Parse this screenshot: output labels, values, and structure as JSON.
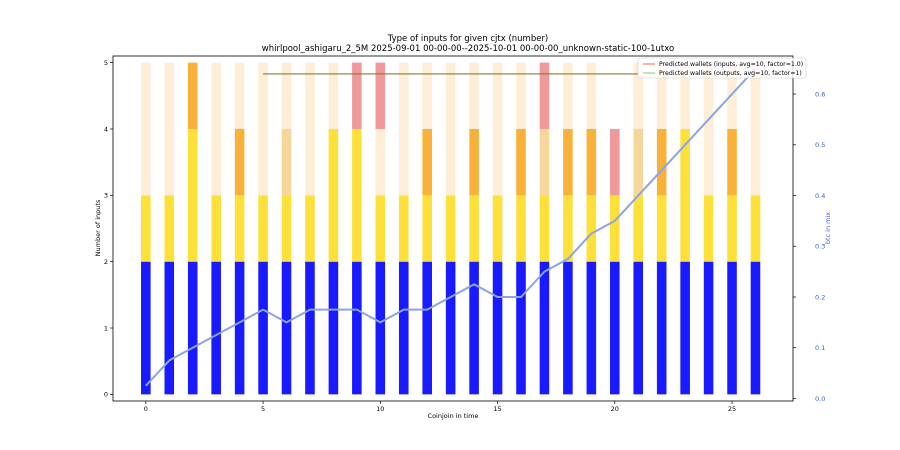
{
  "chart_data": {
    "type": "bar",
    "title": "Type of inputs for given cjtx (number)",
    "subtitle": "whirlpool_ashigaru_2_5M 2025-09-01 00-00-00--2025-10-01 00-00-00_unknown-static-100-1utxo",
    "xlabel": "Coinjoin in time",
    "ylabel": "Number of inputs",
    "ylabel_right": "btc in mix",
    "xlim": [
      -1.4,
      27.6
    ],
    "ylim": [
      -0.1,
      5.1
    ],
    "ylim_right": [
      -0.005,
      0.675
    ],
    "x_ticks": [
      0,
      5,
      10,
      15,
      20,
      25
    ],
    "y_ticks": [
      0,
      1,
      2,
      3,
      4,
      5
    ],
    "y_ticks_right": [
      0.0,
      0.1,
      0.2,
      0.3,
      0.4,
      0.5,
      0.6
    ],
    "x": [
      0,
      1,
      2,
      3,
      4,
      5,
      6,
      7,
      8,
      9,
      10,
      11,
      12,
      13,
      14,
      15,
      16,
      17,
      18,
      19,
      20,
      21,
      22,
      23,
      24,
      25,
      26
    ],
    "series": [
      {
        "name": "remix blue",
        "color": "#1a1aff",
        "values": [
          2,
          2,
          2,
          2,
          2,
          2,
          2,
          2,
          2,
          2,
          2,
          2,
          2,
          2,
          2,
          2,
          2,
          2,
          2,
          2,
          2,
          2,
          2,
          2,
          2,
          2,
          2
        ]
      },
      {
        "name": "remix yellow",
        "color": "#fde03a",
        "values": [
          1,
          1,
          2,
          1,
          1,
          1,
          1,
          1,
          2,
          2,
          1,
          1,
          1,
          1,
          1,
          1,
          1,
          1,
          1,
          1,
          1,
          1,
          1,
          2,
          1,
          1,
          1
        ]
      },
      {
        "name": "fresh orange",
        "color": "#f9b13a",
        "values": [
          0,
          0,
          1,
          0,
          1,
          0,
          0,
          0,
          0,
          0,
          0,
          0,
          1,
          0,
          1,
          0,
          1,
          0,
          1,
          1,
          0,
          0,
          1,
          0,
          0,
          1,
          0
        ]
      },
      {
        "name": "fresh light",
        "color": "#f6d79b",
        "values": [
          0,
          0,
          0,
          0,
          0,
          0,
          1,
          0,
          0,
          0,
          0,
          0,
          0,
          0,
          0,
          0,
          0,
          1,
          0,
          0,
          0,
          1,
          0,
          0,
          0,
          0,
          0
        ]
      },
      {
        "name": "fresh pale",
        "color": "#feeed8",
        "values": [
          2,
          2,
          0,
          2,
          1,
          2,
          1,
          2,
          1,
          0,
          1,
          2,
          1,
          2,
          1,
          2,
          1,
          0,
          1,
          1,
          0,
          1,
          1,
          1,
          2,
          1,
          2
        ]
      },
      {
        "name": "red",
        "color": "#f0999b",
        "values": [
          0,
          0,
          0,
          0,
          0,
          0,
          0,
          0,
          0,
          1,
          1,
          0,
          0,
          0,
          0,
          0,
          0,
          1,
          0,
          0,
          1,
          0,
          0,
          0,
          0,
          0,
          0
        ]
      }
    ],
    "btc_in_mix": {
      "name": "btc in mix",
      "color": "#8aa4e6",
      "values": [
        0.025,
        0.075,
        0.1,
        0.125,
        0.15,
        0.175,
        0.15,
        0.175,
        0.175,
        0.175,
        0.15,
        0.175,
        0.175,
        0.2,
        0.225,
        0.2,
        0.2,
        0.25,
        0.275,
        0.325,
        0.35,
        0.4,
        0.45,
        0.5,
        0.55,
        0.6,
        0.65
      ]
    },
    "predicted_inputs": {
      "name": "Predicted wallets (inputs, avg=10, factor=1.0)",
      "color": "#f08080",
      "values": []
    },
    "predicted_outputs": {
      "name": "Predicted wallets (outputs, avg=10, factor=1)",
      "color": "#90d890",
      "x_range": [
        5,
        21
      ],
      "value": 4.83
    },
    "legend_location": "top-right"
  }
}
